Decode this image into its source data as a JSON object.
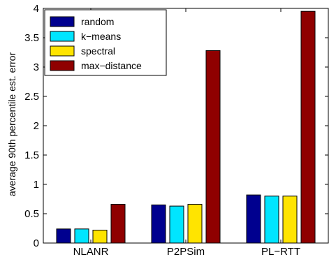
{
  "chart_data": {
    "type": "bar",
    "title": "",
    "xlabel": "",
    "ylabel": "average 90th percentile est. error",
    "categories": [
      "NLANR",
      "P2PSim",
      "PL−RTT"
    ],
    "series": [
      {
        "name": "random",
        "color": "#00008f",
        "values": [
          0.24,
          0.65,
          0.82
        ]
      },
      {
        "name": "k−means",
        "color": "#00e5ff",
        "values": [
          0.24,
          0.63,
          0.8
        ]
      },
      {
        "name": "spectral",
        "color": "#ffe400",
        "values": [
          0.22,
          0.66,
          0.8
        ]
      },
      {
        "name": "max−distance",
        "color": "#8f0000",
        "values": [
          0.66,
          3.28,
          3.95
        ]
      }
    ],
    "ylim": [
      0,
      4
    ],
    "yticks": [
      "0",
      "0.5",
      "1",
      "1.5",
      "2",
      "2.5",
      "3",
      "3.5",
      "4"
    ],
    "ytick_values": [
      0,
      0.5,
      1,
      1.5,
      2,
      2.5,
      3,
      3.5,
      4
    ],
    "grid": false,
    "legend_position": "top-left"
  }
}
